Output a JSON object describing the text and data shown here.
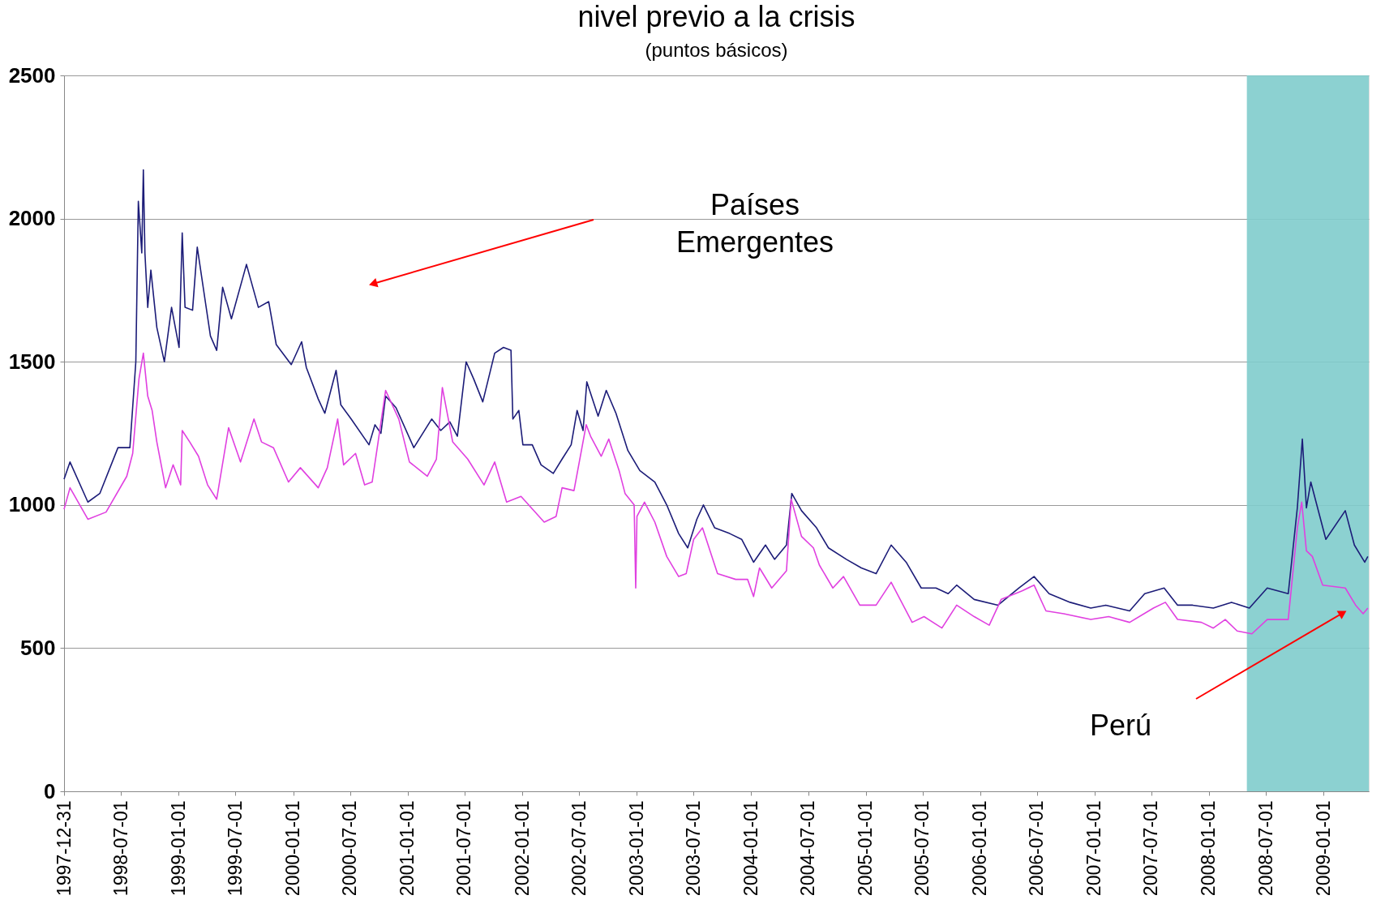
{
  "chart_data": {
    "type": "line",
    "title": "nivel previo a la crisis",
    "subtitle": "(puntos básicos)",
    "xlim": [
      "1997-12-31",
      "2009-05-25"
    ],
    "xticks": [
      "1997-12-31",
      "1998-07-01",
      "1999-01-01",
      "1999-07-01",
      "2000-01-01",
      "2000-07-01",
      "2001-01-01",
      "2001-07-01",
      "2002-01-01",
      "2002-07-01",
      "2003-01-01",
      "2003-07-01",
      "2004-01-01",
      "2004-07-01",
      "2005-01-01",
      "2005-07-01",
      "2006-01-01",
      "2006-07-01",
      "2007-01-01",
      "2007-07-01",
      "2008-01-01",
      "2008-07-01",
      "2009-01-01"
    ],
    "ylim": [
      0,
      2500
    ],
    "yticks": [
      0,
      500,
      1000,
      1500,
      2000,
      2500
    ],
    "grid": "y",
    "line_style": "solid",
    "marker": "none",
    "bands": [
      {
        "axis": "x",
        "from": "2008-05-01",
        "to": "2009-05-25",
        "color": "#7fcccc"
      }
    ],
    "annotations": [
      "Países\nEmergentes",
      "Perú"
    ],
    "series": [
      {
        "color": "#1c1c78",
        "x": [
          "1997-12-31",
          "1998-01-19",
          "1998-03-17",
          "1998-04-24",
          "1998-06-21",
          "1998-07-29",
          "1998-08-17",
          "1998-08-25",
          "1998-09-05",
          "1998-09-10",
          "1998-09-15",
          "1998-09-24",
          "1998-10-04",
          "1998-10-23",
          "1998-11-16",
          "1998-12-09",
          "1999-01-02",
          "1999-01-12",
          "1999-01-21",
          "1999-02-14",
          "1999-03-01",
          "1999-04-12",
          "1999-05-02",
          "1999-05-21",
          "1999-06-18",
          "1999-08-05",
          "1999-09-12",
          "1999-10-15",
          "1999-11-08",
          "1999-12-26",
          "2000-01-28",
          "2000-02-12",
          "2000-03-21",
          "2000-04-11",
          "2000-05-17",
          "2000-06-01",
          "2000-07-04",
          "2000-08-30",
          "2000-09-18",
          "2000-10-07",
          "2000-10-22",
          "2000-11-24",
          "2001-01-20",
          "2001-03-18",
          "2001-04-16",
          "2001-05-15",
          "2001-06-08",
          "2001-07-06",
          "2001-07-30",
          "2001-08-28",
          "2001-10-05",
          "2001-11-02",
          "2001-11-26",
          "2001-12-02",
          "2001-12-21",
          "2002-01-03",
          "2002-02-02",
          "2002-03-02",
          "2002-04-10",
          "2002-05-08",
          "2002-06-06",
          "2002-06-25",
          "2002-07-14",
          "2002-07-26",
          "2002-08-31",
          "2002-09-26",
          "2002-10-27",
          "2002-12-04",
          "2003-01-11",
          "2003-02-28",
          "2003-04-07",
          "2003-05-15",
          "2003-06-13",
          "2003-07-12",
          "2003-08-02",
          "2003-09-07",
          "2003-10-25",
          "2003-12-02",
          "2004-01-09",
          "2004-02-16",
          "2004-03-16",
          "2004-04-23",
          "2004-05-10",
          "2004-06-10",
          "2004-07-28",
          "2004-09-04",
          "2004-10-31",
          "2004-12-18",
          "2005-02-03",
          "2005-03-23",
          "2005-05-10",
          "2005-06-27",
          "2005-08-13",
          "2005-09-21",
          "2005-10-18",
          "2005-12-13",
          "2006-02-27",
          "2006-05-05",
          "2006-06-22",
          "2006-08-09",
          "2006-10-15",
          "2006-12-20",
          "2007-02-06",
          "2007-04-23",
          "2007-06-10",
          "2007-08-11",
          "2007-09-23",
          "2007-11-10",
          "2008-01-15",
          "2008-03-13",
          "2008-05-09",
          "2008-07-05",
          "2008-09-10",
          "2008-10-09",
          "2008-10-25",
          "2008-11-07",
          "2008-11-21",
          "2009-01-08",
          "2009-03-11",
          "2009-04-09",
          "2009-05-12",
          "2009-05-22"
        ],
        "values": [
          1090,
          1150,
          1010,
          1040,
          1200,
          1200,
          1500,
          2060,
          1880,
          2170,
          1880,
          1690,
          1820,
          1620,
          1500,
          1690,
          1550,
          1950,
          1690,
          1680,
          1900,
          1590,
          1540,
          1760,
          1650,
          1840,
          1690,
          1710,
          1560,
          1490,
          1570,
          1480,
          1370,
          1320,
          1470,
          1350,
          1300,
          1210,
          1280,
          1250,
          1380,
          1340,
          1200,
          1300,
          1260,
          1290,
          1240,
          1500,
          1440,
          1360,
          1530,
          1550,
          1540,
          1300,
          1330,
          1210,
          1210,
          1140,
          1110,
          1160,
          1210,
          1330,
          1260,
          1430,
          1310,
          1400,
          1320,
          1190,
          1120,
          1080,
          1000,
          900,
          850,
          950,
          1000,
          920,
          900,
          880,
          800,
          860,
          810,
          860,
          1040,
          980,
          920,
          850,
          810,
          780,
          760,
          860,
          800,
          710,
          710,
          690,
          720,
          670,
          650,
          710,
          750,
          690,
          660,
          640,
          650,
          630,
          690,
          710,
          650,
          650,
          640,
          660,
          640,
          710,
          690,
          990,
          1230,
          990,
          1080,
          880,
          980,
          860,
          800,
          820
        ]
      },
      {
        "color": "#e040e0",
        "x": [
          "1997-12-31",
          "1998-01-19",
          "1998-03-17",
          "1998-05-14",
          "1998-07-19",
          "1998-08-07",
          "1998-08-27",
          "1998-09-10",
          "1998-09-24",
          "1998-10-08",
          "1998-10-23",
          "1998-11-20",
          "1998-12-14",
          "1999-01-07",
          "1999-01-12",
          "1999-02-05",
          "1999-03-05",
          "1999-04-03",
          "1999-05-02",
          "1999-06-09",
          "1999-07-17",
          "1999-08-29",
          "1999-09-22",
          "1999-10-30",
          "1999-12-17",
          "2000-01-24",
          "2000-03-21",
          "2000-04-19",
          "2000-05-22",
          "2000-06-10",
          "2000-07-18",
          "2000-08-16",
          "2000-09-09",
          "2000-09-28",
          "2000-10-22",
          "2000-12-03",
          "2001-01-06",
          "2001-03-04",
          "2001-04-02",
          "2001-04-21",
          "2001-05-24",
          "2001-07-11",
          "2001-09-01",
          "2001-10-05",
          "2001-11-12",
          "2001-12-28",
          "2002-03-12",
          "2002-04-19",
          "2002-05-08",
          "2002-06-15",
          "2002-07-24",
          "2002-08-07",
          "2002-09-10",
          "2002-10-04",
          "2002-11-06",
          "2002-11-25",
          "2002-12-24",
          "2002-12-29",
          "2003-01-02",
          "2003-01-26",
          "2003-02-28",
          "2003-04-07",
          "2003-05-15",
          "2003-06-08",
          "2003-07-02",
          "2003-07-30",
          "2003-09-16",
          "2003-11-13",
          "2003-12-21",
          "2004-01-09",
          "2004-01-28",
          "2004-03-07",
          "2004-04-23",
          "2004-05-08",
          "2004-06-10",
          "2004-07-18",
          "2004-08-06",
          "2004-09-18",
          "2004-10-22",
          "2004-12-13",
          "2005-02-03",
          "2005-03-23",
          "2005-05-29",
          "2005-07-06",
          "2005-09-01",
          "2005-10-18",
          "2005-12-13",
          "2006-01-30",
          "2006-03-09",
          "2006-05-15",
          "2006-06-22",
          "2006-07-30",
          "2006-09-25",
          "2006-12-20",
          "2007-02-15",
          "2007-04-23",
          "2007-07-08",
          "2007-08-15",
          "2007-09-23",
          "2007-12-08",
          "2008-01-15",
          "2008-02-22",
          "2008-03-31",
          "2008-05-17",
          "2008-07-05",
          "2008-09-10",
          "2008-10-09",
          "2008-10-23",
          "2008-11-07",
          "2008-11-26",
          "2008-12-29",
          "2009-03-11",
          "2009-04-13",
          "2009-05-07",
          "2009-05-22"
        ],
        "values": [
          985,
          1060,
          950,
          975,
          1100,
          1180,
          1440,
          1530,
          1380,
          1330,
          1220,
          1060,
          1140,
          1070,
          1260,
          1220,
          1170,
          1070,
          1020,
          1270,
          1150,
          1300,
          1220,
          1200,
          1080,
          1130,
          1060,
          1130,
          1300,
          1140,
          1180,
          1070,
          1080,
          1220,
          1400,
          1300,
          1150,
          1100,
          1160,
          1410,
          1220,
          1160,
          1070,
          1150,
          1010,
          1030,
          940,
          960,
          1060,
          1050,
          1280,
          1240,
          1170,
          1230,
          1120,
          1040,
          1000,
          710,
          960,
          1010,
          940,
          820,
          750,
          760,
          880,
          920,
          760,
          740,
          740,
          680,
          780,
          710,
          770,
          1020,
          890,
          850,
          790,
          710,
          750,
          650,
          650,
          730,
          590,
          610,
          570,
          650,
          610,
          580,
          670,
          700,
          720,
          630,
          620,
          600,
          610,
          590,
          640,
          660,
          600,
          590,
          570,
          600,
          560,
          550,
          600,
          600,
          920,
          1010,
          840,
          820,
          720,
          710,
          650,
          620,
          640
        ]
      }
    ]
  }
}
